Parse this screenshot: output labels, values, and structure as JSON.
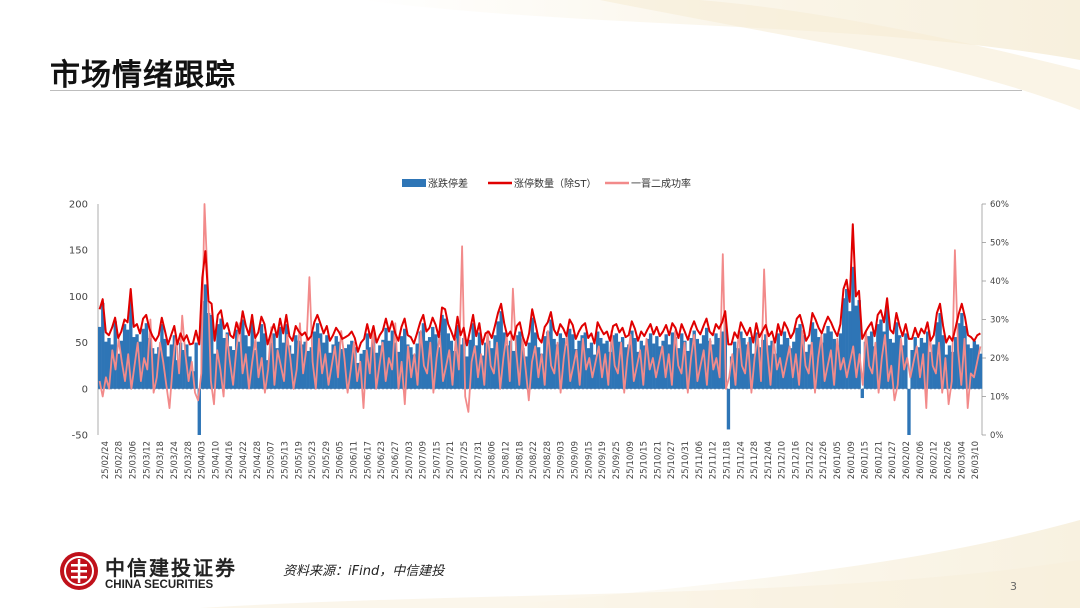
{
  "page": {
    "title": "市场情绪跟踪",
    "source": "资料来源：iFind，中信建投",
    "page_number": "3",
    "logo_cn": "中信建投证券",
    "logo_en": "CHINA SECURITIES"
  },
  "colors": {
    "bar": "#2e75b6",
    "limit_up_line": "#e00000",
    "success_line": "#f28a8a",
    "brand_red": "#c0111b"
  },
  "chart_data": {
    "type": "bar",
    "title": "",
    "xlabel": "",
    "ylabel": "",
    "legend_position": "top",
    "ylim": [
      -50,
      200
    ],
    "yticks": [
      200,
      150,
      100,
      50,
      0,
      -50
    ],
    "y2lim": [
      0,
      0.6
    ],
    "y2ticks": [
      "60%",
      "50%",
      "40%",
      "30%",
      "20%",
      "10%",
      "0%"
    ],
    "date_labels": [
      "25/02/24",
      "25/02/28",
      "25/03/06",
      "25/03/12",
      "25/03/18",
      "25/03/24",
      "25/03/28",
      "25/04/03",
      "25/04/10",
      "25/04/16",
      "25/04/22",
      "25/04/28",
      "25/05/07",
      "25/05/13",
      "25/05/19",
      "25/05/23",
      "25/05/29",
      "25/06/05",
      "25/06/11",
      "25/06/17",
      "25/06/23",
      "25/06/27",
      "25/07/03",
      "25/07/09",
      "25/07/15",
      "25/07/21",
      "25/07/25",
      "25/07/31",
      "25/08/06",
      "25/08/12",
      "25/08/18",
      "25/08/22",
      "25/08/28",
      "25/09/03",
      "25/09/09",
      "25/09/15",
      "25/09/19",
      "25/09/25",
      "25/10/09",
      "25/10/15",
      "25/10/21",
      "25/10/27",
      "25/10/31",
      "25/11/06",
      "25/11/12",
      "25/11/18",
      "25/11/24",
      "25/11/28",
      "25/12/04",
      "25/12/10",
      "25/12/16",
      "25/12/22",
      "25/12/26",
      "26/01/05",
      "26/01/09",
      "26/01/15",
      "26/01/21",
      "26/01/27",
      "26/02/02",
      "26/02/06",
      "26/02/12",
      "26/02/26",
      "26/03/04",
      "26/03/10"
    ],
    "series": [
      {
        "name": "涨跌停差",
        "kind": "bar",
        "axis": "left",
        "values": [
          67,
          93,
          51,
          55,
          48,
          73,
          38,
          52,
          70,
          64,
          96,
          56,
          59,
          51,
          65,
          71,
          55,
          44,
          38,
          45,
          70,
          54,
          35,
          48,
          58,
          31,
          50,
          42,
          48,
          35,
          19,
          50,
          -50,
          95,
          113,
          82,
          80,
          38,
          70,
          76,
          55,
          61,
          46,
          42,
          64,
          51,
          75,
          58,
          46,
          72,
          42,
          51,
          70,
          60,
          31,
          50,
          60,
          44,
          67,
          50,
          70,
          47,
          38,
          58,
          52,
          48,
          51,
          41,
          45,
          62,
          71,
          60,
          50,
          58,
          39,
          48,
          57,
          51,
          43,
          44,
          48,
          52,
          45,
          28,
          38,
          42,
          60,
          45,
          58,
          39,
          47,
          53,
          66,
          52,
          63,
          50,
          40,
          57,
          65,
          48,
          45,
          37,
          49,
          62,
          71,
          52,
          56,
          67,
          59,
          45,
          80,
          76,
          60,
          52,
          41,
          69,
          48,
          55,
          35,
          53,
          71,
          47,
          61,
          36,
          50,
          52,
          44,
          58,
          73,
          84,
          61,
          47,
          52,
          41,
          58,
          62,
          44,
          35,
          50,
          77,
          61,
          45,
          38,
          57,
          62,
          75,
          54,
          48,
          60,
          55,
          47,
          65,
          59,
          43,
          52,
          58,
          61,
          44,
          50,
          37,
          62,
          55,
          49,
          52,
          40,
          58,
          60,
          51,
          56,
          45,
          48,
          63,
          55,
          40,
          52,
          47,
          54,
          60,
          49,
          57,
          46,
          52,
          59,
          48,
          61,
          56,
          44,
          60,
          52,
          41,
          55,
          63,
          54,
          49,
          58,
          66,
          52,
          48,
          60,
          55,
          62,
          75,
          -44,
          35,
          51,
          44,
          62,
          55,
          48,
          56,
          38,
          61,
          45,
          53,
          59,
          47,
          52,
          38,
          60,
          48,
          62,
          55,
          44,
          51,
          66,
          70,
          58,
          40,
          48,
          72,
          65,
          56,
          50,
          60,
          68,
          62,
          54,
          47,
          60,
          98,
          108,
          84,
          132,
          90,
          96,
          -10,
          51,
          57,
          62,
          46,
          70,
          75,
          62,
          88,
          54,
          50,
          72,
          58,
          47,
          60,
          -50,
          42,
          56,
          45,
          55,
          50,
          62,
          40,
          48,
          72,
          82,
          58,
          37,
          47,
          40,
          56,
          71,
          82,
          68,
          48,
          44,
          52,
          48,
          38
        ],
        "note_values": "bar values estimated per trading day"
      },
      {
        "name": "涨停数量（除ST）",
        "kind": "line",
        "axis": "left",
        "values": [
          86,
          97,
          61,
          58,
          66,
          77,
          55,
          62,
          75,
          72,
          108,
          67,
          70,
          60,
          76,
          80,
          65,
          57,
          52,
          58,
          77,
          63,
          48,
          58,
          68,
          48,
          60,
          52,
          58,
          48,
          49,
          63,
          48,
          120,
          149,
          95,
          92,
          52,
          80,
          85,
          65,
          71,
          58,
          55,
          72,
          60,
          84,
          68,
          58,
          80,
          55,
          61,
          78,
          70,
          48,
          60,
          70,
          56,
          76,
          60,
          80,
          57,
          52,
          68,
          62,
          58,
          61,
          53,
          57,
          72,
          80,
          70,
          60,
          68,
          52,
          58,
          66,
          61,
          54,
          56,
          58,
          62,
          55,
          40,
          50,
          54,
          70,
          55,
          68,
          50,
          58,
          63,
          76,
          62,
          73,
          60,
          52,
          67,
          76,
          58,
          56,
          49,
          60,
          72,
          80,
          62,
          66,
          77,
          69,
          56,
          88,
          86,
          70,
          62,
          53,
          78,
          58,
          66,
          47,
          63,
          80,
          57,
          71,
          48,
          60,
          62,
          55,
          68,
          82,
          92,
          71,
          57,
          62,
          53,
          68,
          72,
          56,
          47,
          60,
          86,
          71,
          55,
          50,
          67,
          72,
          83,
          64,
          58,
          70,
          65,
          57,
          75,
          69,
          54,
          62,
          68,
          71,
          55,
          60,
          49,
          72,
          65,
          59,
          62,
          52,
          68,
          70,
          61,
          66,
          56,
          58,
          73,
          65,
          52,
          62,
          57,
          64,
          70,
          59,
          67,
          57,
          62,
          69,
          58,
          71,
          66,
          55,
          70,
          62,
          53,
          65,
          73,
          64,
          59,
          68,
          76,
          62,
          58,
          70,
          65,
          72,
          84,
          48,
          48,
          61,
          55,
          72,
          65,
          58,
          66,
          50,
          71,
          56,
          63,
          69,
          57,
          62,
          50,
          70,
          58,
          72,
          65,
          55,
          61,
          76,
          80,
          68,
          52,
          58,
          82,
          75,
          66,
          60,
          70,
          78,
          72,
          64,
          57,
          70,
          108,
          118,
          94,
          178,
          100,
          106,
          54,
          61,
          67,
          72,
          57,
          80,
          85,
          72,
          98,
          64,
          60,
          82,
          68,
          57,
          70,
          54,
          54,
          66,
          56,
          65,
          60,
          72,
          52,
          58,
          82,
          92,
          68,
          50,
          57,
          52,
          66,
          81,
          92,
          78,
          58,
          56,
          52,
          58,
          60
        ],
        "note_values": "line values estimated per trading day"
      },
      {
        "name": "一晋二成功率",
        "kind": "line",
        "axis": "right",
        "values": [
          0.14,
          0.1,
          0.15,
          0.12,
          0.22,
          0.17,
          0.25,
          0.19,
          0.14,
          0.21,
          0.12,
          0.18,
          0.24,
          0.14,
          0.2,
          0.17,
          0.3,
          0.11,
          0.15,
          0.24,
          0.19,
          0.13,
          0.07,
          0.18,
          0.26,
          0.16,
          0.31,
          0.21,
          0.14,
          0.19,
          0.11,
          0.09,
          0.16,
          0.6,
          0.4,
          0.14,
          0.08,
          0.22,
          0.17,
          0.1,
          0.26,
          0.19,
          0.13,
          0.22,
          0.29,
          0.16,
          0.21,
          0.12,
          0.19,
          0.25,
          0.15,
          0.2,
          0.11,
          0.17,
          0.28,
          0.13,
          0.22,
          0.18,
          0.14,
          0.26,
          0.2,
          0.12,
          0.17,
          0.29,
          0.16,
          0.22,
          0.41,
          0.19,
          0.12,
          0.25,
          0.16,
          0.21,
          0.13,
          0.18,
          0.23,
          0.15,
          0.27,
          0.2,
          0.11,
          0.17,
          0.24,
          0.14,
          0.19,
          0.07,
          0.22,
          0.16,
          0.28,
          0.12,
          0.18,
          0.24,
          0.14,
          0.2,
          0.17,
          0.29,
          0.12,
          0.19,
          0.08,
          0.23,
          0.15,
          0.21,
          0.13,
          0.27,
          0.18,
          0.16,
          0.24,
          0.11,
          0.2,
          0.26,
          0.14,
          0.18,
          0.22,
          0.13,
          0.25,
          0.17,
          0.49,
          0.1,
          0.06,
          0.19,
          0.23,
          0.15,
          0.21,
          0.13,
          0.27,
          0.18,
          0.16,
          0.24,
          0.12,
          0.2,
          0.26,
          0.14,
          0.38,
          0.22,
          0.13,
          0.25,
          0.17,
          0.09,
          0.19,
          0.23,
          0.15,
          0.21,
          0.13,
          0.27,
          0.18,
          0.16,
          0.24,
          0.11,
          0.2,
          0.26,
          0.14,
          0.18,
          0.22,
          0.13,
          0.25,
          0.17,
          0.2,
          0.15,
          0.19,
          0.23,
          0.15,
          0.21,
          0.13,
          0.27,
          0.18,
          0.16,
          0.24,
          0.11,
          0.2,
          0.26,
          0.14,
          0.18,
          0.22,
          0.13,
          0.25,
          0.17,
          0.2,
          0.15,
          0.19,
          0.23,
          0.15,
          0.21,
          0.13,
          0.27,
          0.18,
          0.16,
          0.24,
          0.11,
          0.2,
          0.26,
          0.14,
          0.18,
          0.22,
          0.13,
          0.25,
          0.17,
          0.2,
          0.15,
          0.47,
          0.12,
          0.15,
          0.21,
          0.13,
          0.27,
          0.18,
          0.16,
          0.24,
          0.11,
          0.2,
          0.26,
          0.14,
          0.43,
          0.22,
          0.13,
          0.25,
          0.17,
          0.2,
          0.15,
          0.19,
          0.23,
          0.15,
          0.21,
          0.13,
          0.27,
          0.18,
          0.16,
          0.24,
          0.11,
          0.2,
          0.26,
          0.14,
          0.18,
          0.22,
          0.13,
          0.25,
          0.17,
          0.2,
          0.15,
          0.19,
          0.23,
          0.15,
          0.21,
          0.13,
          0.27,
          0.18,
          0.16,
          0.24,
          0.11,
          0.2,
          0.26,
          0.14,
          0.18,
          0.09,
          0.13,
          0.25,
          0.17,
          0.2,
          0.15,
          0.19,
          0.23,
          0.15,
          0.21,
          0.07,
          0.27,
          0.18,
          0.16,
          0.24,
          0.11,
          0.2,
          0.08,
          0.14,
          0.48,
          0.22,
          0.13,
          0.25,
          0.07,
          0.16,
          0.15,
          0.19,
          0.23
        ],
        "note_values": "ratio values (0–1) estimated per trading day"
      }
    ]
  }
}
